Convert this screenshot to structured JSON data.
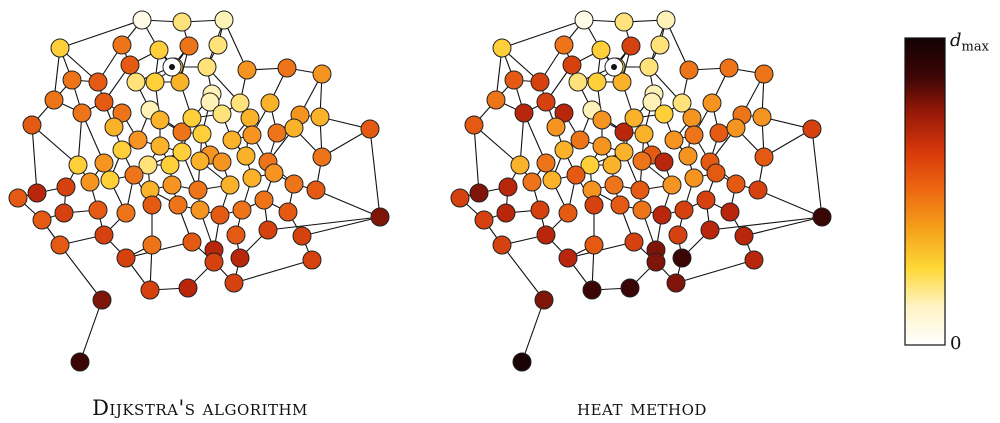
{
  "panels": [
    {
      "caption": "Dijkstra's algorithm"
    },
    {
      "caption": "heat method"
    }
  ],
  "colorbar": {
    "max_label": "d",
    "max_label_sub": "max",
    "min_label": "0",
    "gradient_stops": [
      "#ffffff",
      "#fff3c4",
      "#fdd835",
      "#f5a21b",
      "#ee6a10",
      "#d93a0c",
      "#9c1a08",
      "#3c0605",
      "#120203"
    ]
  },
  "colors": {
    "edge": "#111111",
    "node_stroke": "#222222",
    "source_fill": "#ffffff",
    "source_dot": "#111111"
  },
  "palette": [
    "#fffbe6",
    "#fff2b8",
    "#ffe27a",
    "#ffcf3a",
    "#f9b22a",
    "#f59421",
    "#ee7419",
    "#e55a12",
    "#d6420f",
    "#b8260c",
    "#7f1509",
    "#3a0605",
    "#1a0303"
  ]
}
